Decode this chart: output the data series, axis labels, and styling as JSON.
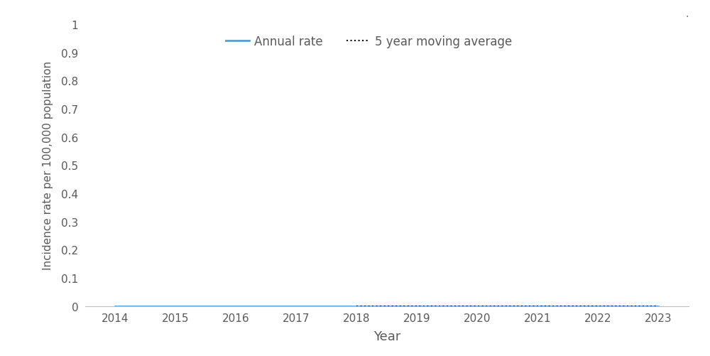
{
  "years": [
    2014,
    2015,
    2016,
    2017,
    2018,
    2019,
    2020,
    2021,
    2022,
    2023
  ],
  "annual_rate": [
    0.0,
    0.0,
    0.0,
    0.0,
    0.0,
    0.0,
    0.0,
    0.0,
    0.0,
    0.0
  ],
  "moving_avg": [
    null,
    null,
    null,
    null,
    0.0,
    0.0,
    0.0,
    0.0,
    0.0,
    0.0
  ],
  "annual_rate_color": "#5B9BD5",
  "moving_avg_color": "#000000",
  "xlabel": "Year",
  "ylabel": "Incidence rate per 100,000 population",
  "ylim": [
    0,
    1
  ],
  "ytick_labels": [
    "0",
    "0.1",
    "0.2",
    "0.3",
    "0.4",
    "0.5",
    "0.6",
    "0.7",
    "0.8",
    "0.9",
    "1"
  ],
  "ytick_vals": [
    0.0,
    0.1,
    0.2,
    0.3,
    0.4,
    0.5,
    0.6,
    0.7,
    0.8,
    0.9,
    1.0
  ],
  "xlim": [
    2013.5,
    2023.5
  ],
  "xticks": [
    2014,
    2015,
    2016,
    2017,
    2018,
    2019,
    2020,
    2021,
    2022,
    2023
  ],
  "legend_annual_rate": "Annual rate",
  "legend_moving_avg": "5 year moving average",
  "annual_rate_linewidth": 2.0,
  "moving_avg_linewidth": 1.5,
  "moving_avg_linestyle": "dotted",
  "background_color": "#ffffff",
  "dot_annotation": ".",
  "tick_color": "#595959",
  "label_color": "#595959",
  "spine_color": "#bfbfbf"
}
